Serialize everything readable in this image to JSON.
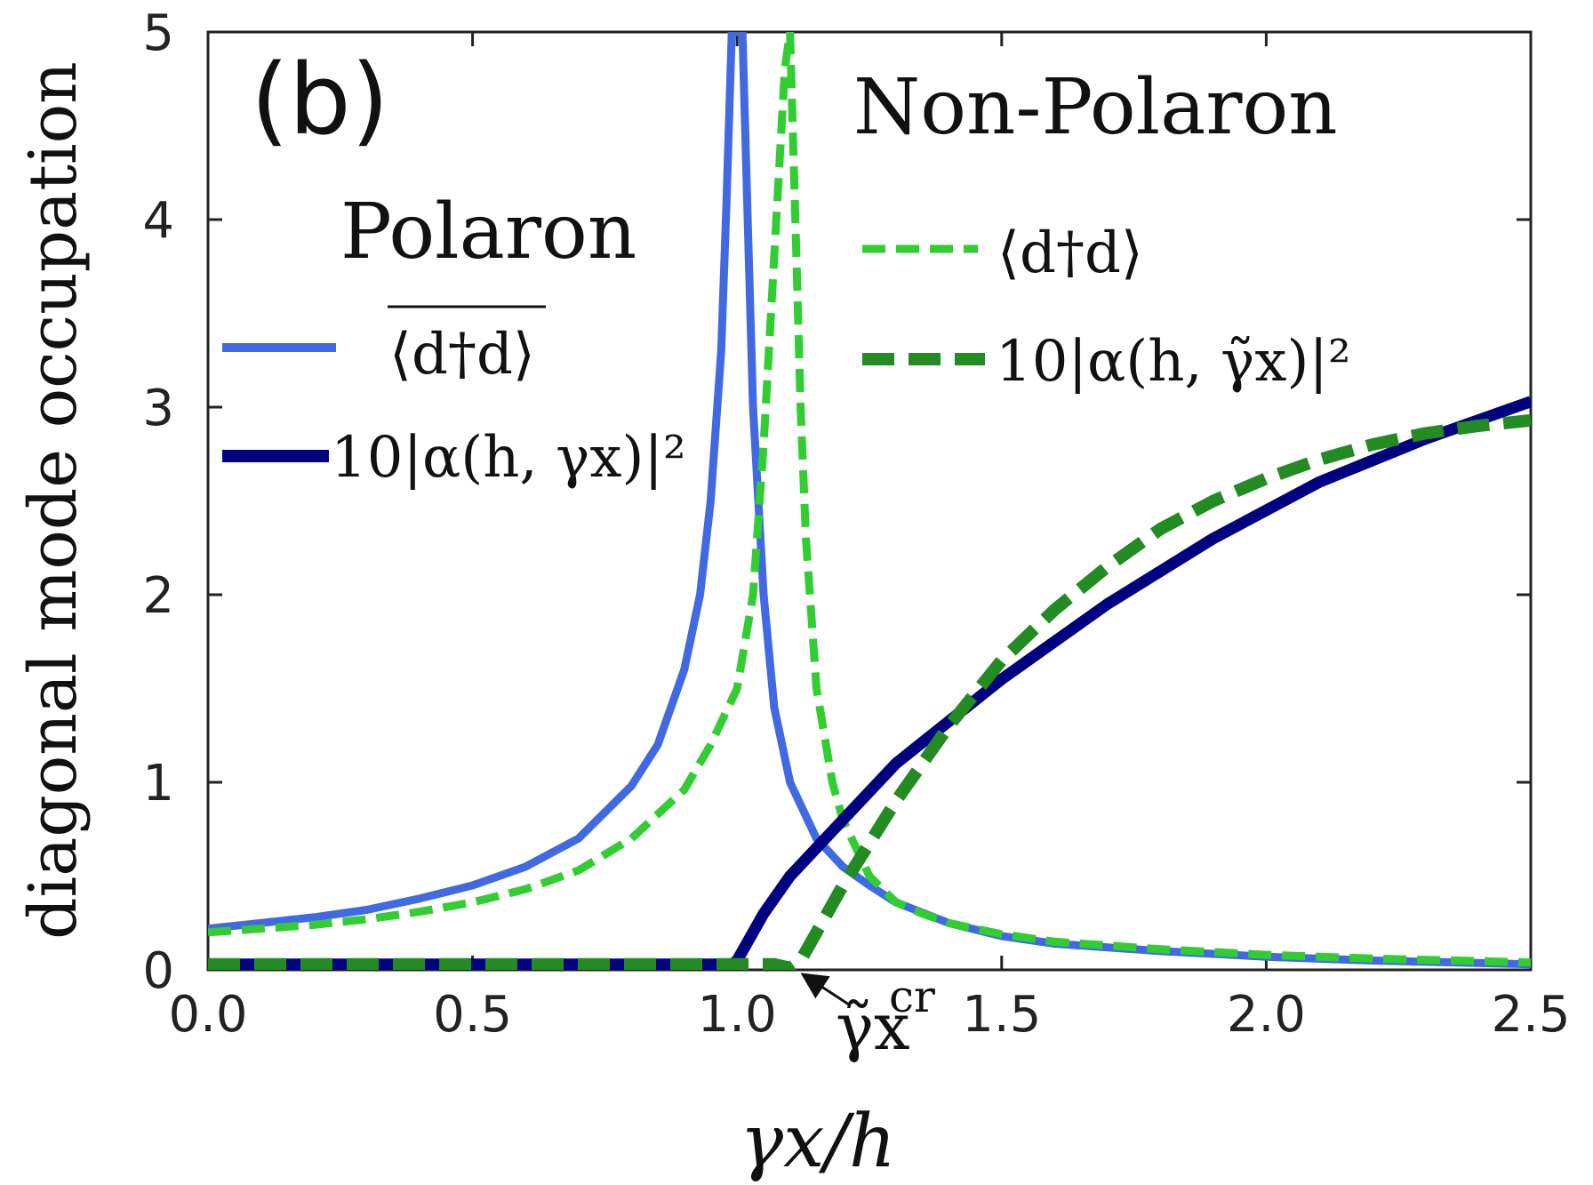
{
  "chart_data": {
    "type": "line",
    "panel_label": "(b)",
    "xlabel": "γx/h",
    "ylabel": "diagonal mode occupation",
    "xlim": [
      0.0,
      2.5
    ],
    "ylim": [
      0,
      5
    ],
    "xticks": [
      "0.0",
      "0.5",
      "1.0",
      "1.5",
      "2.0",
      "2.5"
    ],
    "yticks": [
      "0",
      "1",
      "2",
      "3",
      "4",
      "5"
    ],
    "region_labels": {
      "polaron": "Polaron",
      "non_polaron": "Non-Polaron"
    },
    "annotation": {
      "text": "γ̃x",
      "superscript": "cr",
      "x": 1.12,
      "y": 0
    },
    "legend": {
      "polaron": [
        {
          "series": 0,
          "label": "⟨d†d⟩"
        },
        {
          "series": 1,
          "label": "10|α(h, γx)|²"
        }
      ],
      "non_polaron": [
        {
          "series": 2,
          "label": "⟨d†d⟩"
        },
        {
          "series": 3,
          "label": "10|α(h, γ̃x)|²"
        }
      ]
    },
    "series": [
      {
        "color": "#4169E1",
        "style": "solid",
        "x": [
          0.0,
          0.1,
          0.2,
          0.3,
          0.4,
          0.5,
          0.6,
          0.7,
          0.8,
          0.85,
          0.9,
          0.93,
          0.95,
          0.97,
          0.98,
          0.99,
          1.0,
          1.01,
          1.02,
          1.03,
          1.05,
          1.07,
          1.1,
          1.15,
          1.2,
          1.25,
          1.3,
          1.4,
          1.5,
          1.6,
          1.8,
          2.0,
          2.2,
          2.5
        ],
        "y": [
          0.22,
          0.25,
          0.28,
          0.32,
          0.38,
          0.45,
          0.55,
          0.7,
          0.98,
          1.2,
          1.6,
          2.0,
          2.5,
          3.3,
          4.1,
          5.0,
          5.0,
          5.0,
          4.0,
          3.0,
          2.0,
          1.4,
          1.0,
          0.7,
          0.55,
          0.45,
          0.36,
          0.25,
          0.18,
          0.14,
          0.1,
          0.07,
          0.05,
          0.03
        ]
      },
      {
        "color": "#000080",
        "style": "solid",
        "x": [
          0.0,
          0.5,
          0.99,
          1.0,
          1.05,
          1.1,
          1.2,
          1.3,
          1.5,
          1.7,
          1.9,
          2.1,
          2.3,
          2.5
        ],
        "y": [
          0.03,
          0.03,
          0.03,
          0.05,
          0.3,
          0.5,
          0.8,
          1.1,
          1.55,
          1.95,
          2.3,
          2.6,
          2.83,
          3.03
        ]
      },
      {
        "color": "#32CD32",
        "style": "dashed",
        "x": [
          0.0,
          0.1,
          0.2,
          0.3,
          0.4,
          0.5,
          0.6,
          0.7,
          0.8,
          0.9,
          0.95,
          1.0,
          1.03,
          1.05,
          1.07,
          1.09,
          1.1,
          1.11,
          1.12,
          1.13,
          1.15,
          1.18,
          1.2,
          1.25,
          1.3,
          1.35,
          1.4,
          1.5,
          1.6,
          1.8,
          2.0,
          2.2,
          2.5
        ],
        "y": [
          0.2,
          0.22,
          0.24,
          0.27,
          0.31,
          0.36,
          0.43,
          0.53,
          0.7,
          0.96,
          1.2,
          1.5,
          2.0,
          2.8,
          3.8,
          4.8,
          5.0,
          4.0,
          3.0,
          2.3,
          1.5,
          1.0,
          0.8,
          0.5,
          0.36,
          0.3,
          0.25,
          0.19,
          0.15,
          0.11,
          0.08,
          0.06,
          0.04
        ]
      },
      {
        "color": "#228B22",
        "style": "dashed",
        "x": [
          0.0,
          0.5,
          1.0,
          1.07,
          1.1,
          1.12,
          1.15,
          1.2,
          1.3,
          1.4,
          1.5,
          1.6,
          1.7,
          1.8,
          1.9,
          2.0,
          2.1,
          2.2,
          2.3,
          2.4,
          2.5
        ],
        "y": [
          0.03,
          0.03,
          0.03,
          0.03,
          0.01,
          0.05,
          0.2,
          0.45,
          0.9,
          1.3,
          1.65,
          1.92,
          2.15,
          2.35,
          2.5,
          2.62,
          2.72,
          2.8,
          2.86,
          2.9,
          2.93
        ]
      }
    ]
  }
}
